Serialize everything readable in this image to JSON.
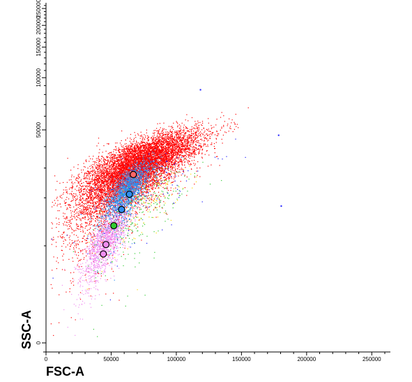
{
  "chart_data": {
    "type": "scatter",
    "title": "",
    "xlabel": "FSC-A",
    "ylabel": "SSC-A",
    "xlim": [
      0,
      262144
    ],
    "ylim": [
      0,
      262144
    ],
    "y_scale": "biexponential",
    "x_scale": "linear",
    "grid": false,
    "legend": "none",
    "x_ticks": [
      {
        "value": 0,
        "label": "0"
      },
      {
        "value": 50000,
        "label": "50000"
      },
      {
        "value": 100000,
        "label": "100000"
      },
      {
        "value": 150000,
        "label": "150000"
      },
      {
        "value": 200000,
        "label": "200000"
      },
      {
        "value": 250000,
        "label": "250000"
      }
    ],
    "y_ticks": [
      {
        "value": 0,
        "label": "0"
      },
      {
        "value": 50000,
        "label": "50000"
      },
      {
        "value": 100000,
        "label": "100000"
      },
      {
        "value": 150000,
        "label": "150000"
      },
      {
        "value": 200000,
        "label": "200000"
      },
      {
        "value": 250000,
        "label": "250000"
      }
    ],
    "populations": [
      {
        "color": "#ff0000",
        "center": [
          68000,
          30000
        ],
        "spread": [
          24000,
          9000
        ],
        "count": 9000
      },
      {
        "color": "#2f8ff0",
        "center": [
          62000,
          22000
        ],
        "spread": [
          9000,
          5000
        ],
        "count": 1800
      },
      {
        "color": "#f08ef0",
        "center": [
          45000,
          10500
        ],
        "spread": [
          9000,
          3000
        ],
        "count": 1400
      },
      {
        "color": "#33cc33",
        "center": [
          72000,
          16000
        ],
        "spread": [
          20000,
          7000
        ],
        "count": 220
      },
      {
        "color": "#ffd700",
        "center": [
          75000,
          18000
        ],
        "spread": [
          18000,
          6000
        ],
        "count": 120
      },
      {
        "color": "#1a1aff",
        "center": [
          80000,
          22000
        ],
        "spread": [
          30000,
          9000
        ],
        "count": 120
      }
    ],
    "markers": [
      {
        "x": 44000,
        "y": 8800,
        "fill": "#f08ef0"
      },
      {
        "x": 46000,
        "y": 10200,
        "fill": "#f08ef0"
      },
      {
        "x": 52000,
        "y": 13500,
        "fill": "#33cc33"
      },
      {
        "x": 58000,
        "y": 17000,
        "fill": "#2f8ff0"
      },
      {
        "x": 64000,
        "y": 21000,
        "fill": "#2f8ff0"
      },
      {
        "x": 67000,
        "y": 27500,
        "fill": "#ff6666"
      }
    ],
    "outliers": [
      {
        "x": 118000,
        "y": 86000,
        "color": "#1a1aff"
      },
      {
        "x": 180000,
        "y": 18000,
        "color": "#1a1aff"
      },
      {
        "x": 178000,
        "y": 47000,
        "color": "#1a1aff"
      }
    ]
  }
}
